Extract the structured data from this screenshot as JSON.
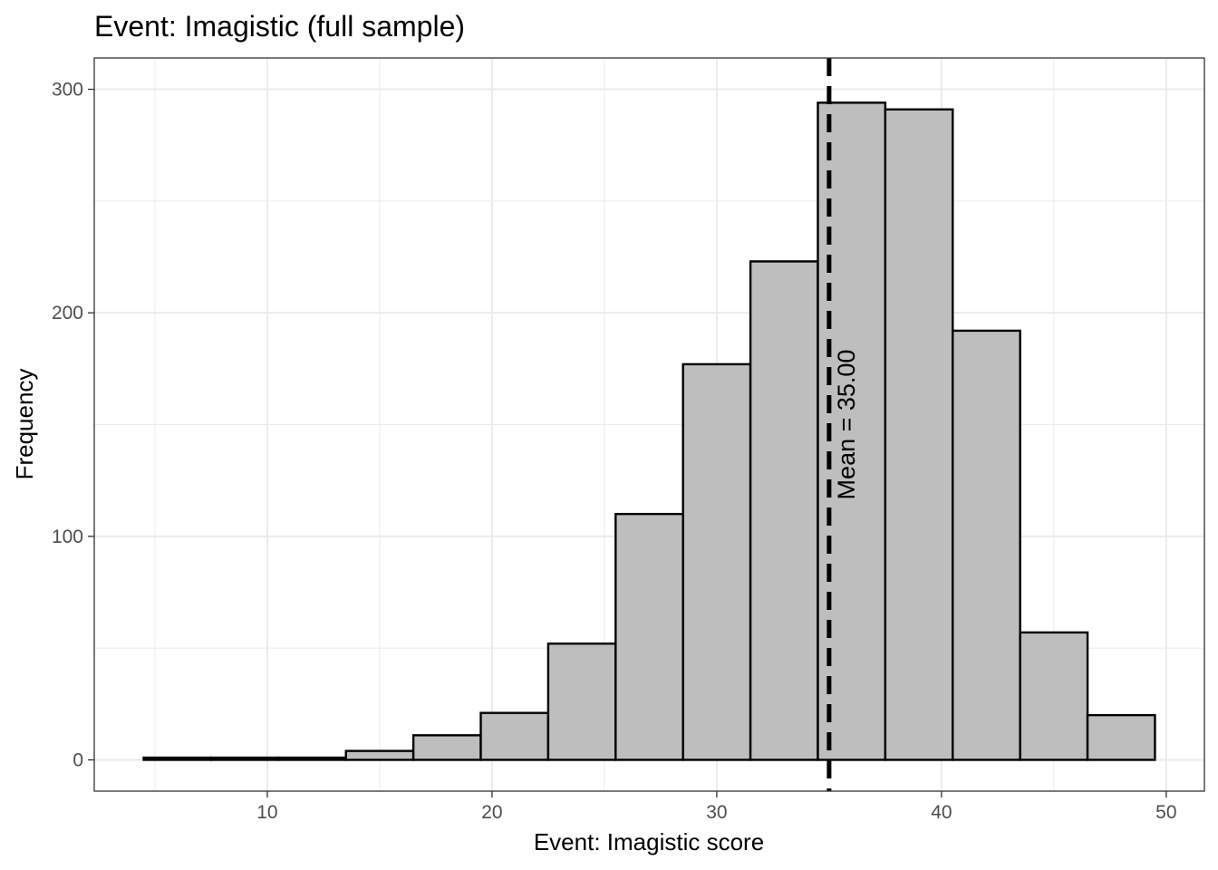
{
  "chart_data": {
    "type": "bar",
    "title": "Event: Imagistic (full sample)",
    "xlabel": "Event: Imagistic score",
    "ylabel": "Frequency",
    "xlim": [
      2.3,
      51.7
    ],
    "ylim": [
      -14,
      314
    ],
    "x_ticks": [
      10,
      20,
      30,
      40,
      50
    ],
    "y_ticks": [
      0,
      100,
      200,
      300
    ],
    "x_minor_ticks": [
      5,
      15,
      25,
      35,
      45
    ],
    "y_minor_ticks": [
      50,
      150,
      250
    ],
    "bin_width": 3,
    "bins": [
      {
        "x0": 4.5,
        "x1": 7.5,
        "count": 1
      },
      {
        "x0": 7.5,
        "x1": 10.5,
        "count": 1
      },
      {
        "x0": 10.5,
        "x1": 13.5,
        "count": 1
      },
      {
        "x0": 13.5,
        "x1": 16.5,
        "count": 4
      },
      {
        "x0": 16.5,
        "x1": 19.5,
        "count": 11
      },
      {
        "x0": 19.5,
        "x1": 22.5,
        "count": 21
      },
      {
        "x0": 22.5,
        "x1": 25.5,
        "count": 52
      },
      {
        "x0": 25.5,
        "x1": 28.5,
        "count": 110
      },
      {
        "x0": 28.5,
        "x1": 31.5,
        "count": 177
      },
      {
        "x0": 31.5,
        "x1": 34.5,
        "count": 223
      },
      {
        "x0": 34.5,
        "x1": 37.5,
        "count": 294
      },
      {
        "x0": 37.5,
        "x1": 40.5,
        "count": 291
      },
      {
        "x0": 40.5,
        "x1": 43.5,
        "count": 192
      },
      {
        "x0": 43.5,
        "x1": 46.5,
        "count": 57
      },
      {
        "x0": 46.5,
        "x1": 49.5,
        "count": 20
      }
    ],
    "mean": 35.0,
    "mean_label": "Mean =  35.00",
    "grid": true,
    "colors": {
      "bar_fill": "#bebebe",
      "bar_stroke": "#000000",
      "grid": "#ebebeb",
      "panel_border": "#333333",
      "tick_label": "#4d4d4d",
      "mean_line": "#000000"
    }
  }
}
